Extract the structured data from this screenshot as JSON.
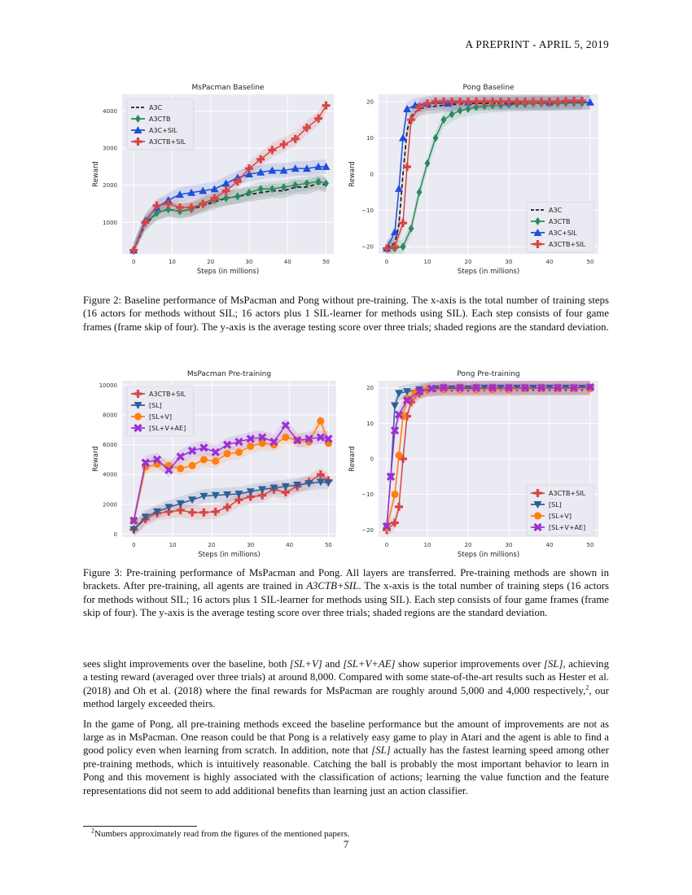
{
  "header": "A PREPRINT - APRIL 5, 2019",
  "figure2": {
    "caption": "Figure 2: Baseline performance of MsPacman and Pong without pre-training. The x-axis is the total number of training steps (16 actors for methods without SIL; 16 actors plus 1 SIL-learner for methods using SIL). Each step consists of four game frames (frame skip of four). The y-axis is the average testing score over three trials; shaded regions are the standard deviation."
  },
  "figure3": {
    "caption_part1": "Figure 3: Pre-training performance of MsPacman and Pong. All layers are transferred. Pre-training methods are shown in brackets. After pre-training, all agents are trained in ",
    "caption_em": "A3CTB+SIL",
    "caption_part2": ". The x-axis is the total number of training steps (16 actors for methods without SIL; 16 actors plus 1 SIL-learner for methods using SIL). Each step consists of four game frames (frame skip of four). The y-axis is the average testing score over three trials; shaded regions are the standard deviation."
  },
  "body": {
    "p1_a": "sees slight improvements over the baseline, both ",
    "p1_em1": "[SL+V]",
    "p1_b": " and ",
    "p1_em2": "[SL+V+AE]",
    "p1_c": " show superior improvements over ",
    "p1_em3": "[SL]",
    "p1_d": ", achieving a testing reward (averaged over three trials) at around 8,000. Compared with some state-of-the-art results such as Hester et al. (2018) and Oh et al. (2018) where the final rewards for MsPacman are roughly around 5,000 and 4,000 respectively,",
    "p1_sup": "2",
    "p1_e": ", our method largely exceeded theirs.",
    "p2_a": "In the game of Pong, all pre-training methods exceed the baseline performance but the amount of improvements are not as large as in MsPacman. One reason could be that Pong is a relatively easy game to play in Atari and the agent is able to find a good policy even when learning from scratch. In addition, note that ",
    "p2_em": "[SL]",
    "p2_b": " actually has the fastest learning speed among other pre-training methods, which is intuitively reasonable. Catching the ball is probably the most important behavior to learn in Pong and this movement is highly associated with the classification of actions; learning the value function and the feature representations did not seem to add additional benefits than learning just an action classifier."
  },
  "footnote": {
    "mark": "2",
    "text": "Numbers approximately read from the figures of the mentioned papers."
  },
  "page_number": "7",
  "chart_data": [
    {
      "type": "line",
      "title": "MsPacman Baseline",
      "xlabel": "Steps (in millions)",
      "ylabel": "Reward",
      "xlim": [
        -3,
        52
      ],
      "ylim": [
        150,
        4450
      ],
      "xticks": [
        0,
        10,
        20,
        30,
        40,
        50
      ],
      "yticks": [
        1000,
        2000,
        3000,
        4000
      ],
      "legend": "top-left",
      "series": [
        {
          "name": "A3C",
          "color": "#222222",
          "dash": true,
          "marker": "none",
          "x": [
            0,
            3,
            6,
            9,
            12,
            15,
            18,
            21,
            24,
            27,
            30,
            33,
            36,
            39,
            42,
            45,
            48,
            50
          ],
          "y": [
            250,
            950,
            1250,
            1350,
            1300,
            1350,
            1450,
            1550,
            1650,
            1700,
            1750,
            1800,
            1850,
            1850,
            1950,
            1950,
            2050,
            2000
          ]
        },
        {
          "name": "A3CTB",
          "color": "#2a8a5e",
          "dash": false,
          "marker": "diamond",
          "x": [
            0,
            3,
            6,
            9,
            12,
            15,
            18,
            21,
            24,
            27,
            30,
            33,
            36,
            39,
            42,
            45,
            48,
            50
          ],
          "y": [
            250,
            1000,
            1250,
            1350,
            1300,
            1350,
            1500,
            1600,
            1650,
            1700,
            1800,
            1900,
            1900,
            1950,
            2000,
            2050,
            2100,
            2050
          ]
        },
        {
          "name": "A3C+SIL",
          "color": "#1f4fd6",
          "dash": false,
          "marker": "triangle",
          "x": [
            0,
            3,
            6,
            9,
            12,
            15,
            18,
            21,
            24,
            27,
            30,
            33,
            36,
            39,
            42,
            45,
            48,
            50
          ],
          "y": [
            250,
            1050,
            1400,
            1600,
            1750,
            1800,
            1850,
            1900,
            2050,
            2200,
            2300,
            2350,
            2400,
            2400,
            2450,
            2450,
            2500,
            2500
          ]
        },
        {
          "name": "A3CTB+SIL",
          "color": "#d64545",
          "dash": false,
          "marker": "plus",
          "x": [
            0,
            3,
            6,
            9,
            12,
            15,
            18,
            21,
            24,
            27,
            30,
            33,
            36,
            39,
            42,
            45,
            48,
            50
          ],
          "y": [
            250,
            1000,
            1450,
            1500,
            1400,
            1400,
            1500,
            1650,
            1850,
            2100,
            2450,
            2700,
            2950,
            3100,
            3250,
            3550,
            3800,
            4150
          ]
        }
      ]
    },
    {
      "type": "line",
      "title": "Pong Baseline",
      "xlabel": "Steps (in millions)",
      "ylabel": "Reward",
      "xlim": [
        -2,
        52
      ],
      "ylim": [
        -22,
        22
      ],
      "xticks": [
        0,
        10,
        20,
        30,
        40,
        50
      ],
      "yticks": [
        -20,
        -10,
        0,
        10,
        20
      ],
      "legend": "bottom-right",
      "series": [
        {
          "name": "A3C",
          "color": "#222222",
          "dash": true,
          "marker": "none",
          "x": [
            0,
            2,
            3,
            4,
            5,
            6,
            8,
            10,
            14,
            20,
            30,
            40,
            50
          ],
          "y": [
            -20.5,
            -19,
            -14,
            0,
            12,
            16,
            18,
            18.5,
            19,
            19.5,
            19.5,
            19.5,
            19.8
          ]
        },
        {
          "name": "A3CTB",
          "color": "#2a8a5e",
          "dash": false,
          "marker": "diamond",
          "x": [
            0,
            2,
            4,
            6,
            8,
            10,
            12,
            14,
            16,
            18,
            20,
            22,
            24,
            26,
            28,
            30,
            32,
            34,
            36,
            38,
            40,
            42,
            44,
            46,
            48
          ],
          "y": [
            -20.5,
            -20.5,
            -20,
            -15,
            -5,
            3,
            10,
            15,
            16.5,
            17.5,
            18,
            18.5,
            18.8,
            19,
            19,
            19.2,
            19.3,
            19.3,
            19.5,
            19.5,
            19.5,
            19.5,
            19.6,
            19.6,
            19.6
          ]
        },
        {
          "name": "A3C+SIL",
          "color": "#1f4fd6",
          "dash": false,
          "marker": "triangle",
          "x": [
            0,
            2,
            3,
            4,
            5,
            7,
            10,
            15,
            20,
            30,
            40,
            50
          ],
          "y": [
            -20.5,
            -16,
            -4,
            10,
            18,
            19,
            19.5,
            19.5,
            19.8,
            19.8,
            19.8,
            19.8
          ]
        },
        {
          "name": "A3CTB+SIL",
          "color": "#d64545",
          "dash": false,
          "marker": "plus",
          "x": [
            0,
            2,
            4,
            5,
            6,
            8,
            10,
            12,
            14,
            16,
            18,
            20,
            22,
            24,
            26,
            28,
            30,
            32,
            34,
            36,
            38,
            40,
            42,
            44,
            46,
            48
          ],
          "y": [
            -20.5,
            -20,
            -13.5,
            2,
            15,
            18.5,
            19.5,
            20,
            20,
            20,
            20,
            20,
            20,
            20,
            20,
            20,
            20,
            20,
            20,
            20,
            20,
            20,
            20,
            20.2,
            20.2,
            20.2
          ]
        }
      ]
    },
    {
      "type": "line",
      "title": "MsPacman Pre-training",
      "xlabel": "Steps (in millions)",
      "ylabel": "Reward",
      "xlim": [
        -3,
        52
      ],
      "ylim": [
        -200,
        10300
      ],
      "xticks": [
        0,
        10,
        20,
        30,
        40,
        50
      ],
      "yticks": [
        0,
        2000,
        4000,
        6000,
        8000,
        10000
      ],
      "legend": "top-left",
      "series": [
        {
          "name": "A3CTB+SIL",
          "color": "#d64545",
          "dash": false,
          "marker": "plus",
          "x": [
            0,
            3,
            6,
            9,
            12,
            15,
            18,
            21,
            24,
            27,
            30,
            33,
            36,
            39,
            42,
            45,
            48,
            50
          ],
          "y": [
            300,
            1000,
            1400,
            1500,
            1600,
            1450,
            1450,
            1500,
            1800,
            2300,
            2500,
            2600,
            3000,
            2800,
            3200,
            3500,
            4000,
            3600
          ]
        },
        {
          "name": "[SL]",
          "color": "#2f5f96",
          "dash": false,
          "marker": "tri-down",
          "x": [
            0,
            3,
            6,
            9,
            12,
            15,
            18,
            21,
            24,
            27,
            30,
            33,
            36,
            39,
            42,
            45,
            48,
            50
          ],
          "y": [
            300,
            1150,
            1500,
            1800,
            2050,
            2300,
            2550,
            2600,
            2650,
            2700,
            2850,
            3000,
            3100,
            3200,
            3300,
            3400,
            3500,
            3450
          ]
        },
        {
          "name": "[SL+V]",
          "color": "#ff7f0e",
          "dash": false,
          "marker": "circle",
          "x": [
            0,
            3,
            6,
            9,
            12,
            15,
            18,
            21,
            24,
            27,
            30,
            33,
            36,
            39,
            42,
            45,
            48,
            50
          ],
          "y": [
            900,
            4500,
            4700,
            4600,
            4400,
            4600,
            5000,
            4900,
            5400,
            5500,
            5900,
            6100,
            6000,
            6500,
            6300,
            6200,
            7600,
            6100
          ]
        },
        {
          "name": "[SL+V+AE]",
          "color": "#9b2fd4",
          "dash": false,
          "marker": "x",
          "x": [
            0,
            3,
            6,
            9,
            12,
            15,
            18,
            21,
            24,
            27,
            30,
            33,
            36,
            39,
            42,
            45,
            48,
            50
          ],
          "y": [
            900,
            4800,
            5000,
            4300,
            5200,
            5600,
            5800,
            5500,
            6000,
            6200,
            6400,
            6500,
            6200,
            7300,
            6300,
            6400,
            6500,
            6400
          ]
        }
      ]
    },
    {
      "type": "line",
      "title": "Pong Pre-training",
      "xlabel": "Steps (in millions)",
      "ylabel": "Reward",
      "xlim": [
        -2,
        52
      ],
      "ylim": [
        -22,
        22
      ],
      "xticks": [
        0,
        10,
        20,
        30,
        40,
        50
      ],
      "yticks": [
        -20,
        -10,
        0,
        10,
        20
      ],
      "legend": "bottom-right",
      "series": [
        {
          "name": "A3CTB+SIL",
          "color": "#d64545",
          "dash": false,
          "marker": "plus",
          "x": [
            0,
            2,
            3,
            4,
            5,
            6,
            8,
            10,
            14,
            18,
            22,
            26,
            30,
            34,
            38,
            42,
            46,
            50
          ],
          "y": [
            -20,
            -18,
            -13.5,
            0,
            12,
            16,
            18.5,
            19.5,
            20,
            20,
            20,
            20,
            20,
            20,
            20,
            20,
            20,
            20
          ]
        },
        {
          "name": "[SL]",
          "color": "#2f5f96",
          "dash": false,
          "marker": "tri-down",
          "x": [
            0,
            1,
            2,
            3,
            5,
            8,
            12,
            16,
            20,
            24,
            28,
            32,
            36,
            40,
            44,
            48,
            50
          ],
          "y": [
            -19,
            -5,
            15,
            18.5,
            19,
            19.5,
            19.8,
            19.8,
            19.8,
            20,
            20,
            20,
            20,
            20,
            20,
            20,
            20
          ]
        },
        {
          "name": "[SL+V]",
          "color": "#ff7f0e",
          "dash": false,
          "marker": "circle",
          "x": [
            0,
            2,
            3,
            4,
            5,
            7,
            10,
            14,
            18,
            22,
            26,
            30,
            34,
            38,
            42,
            46,
            50
          ],
          "y": [
            -19.5,
            -10,
            1,
            12,
            17,
            18.5,
            19.5,
            19.5,
            19.5,
            19.5,
            19.5,
            19.5,
            19.8,
            19.8,
            19.8,
            19.8,
            19.8
          ]
        },
        {
          "name": "[SL+V+AE]",
          "color": "#9b2fd4",
          "dash": false,
          "marker": "x",
          "x": [
            0,
            1,
            2,
            3,
            5,
            8,
            11,
            14,
            18,
            22,
            26,
            30,
            34,
            38,
            42,
            46,
            50
          ],
          "y": [
            -19,
            -5,
            8,
            12.5,
            16.5,
            19,
            19.8,
            20,
            20,
            20,
            20,
            20,
            20,
            20,
            20,
            20,
            20.2
          ]
        }
      ]
    }
  ]
}
